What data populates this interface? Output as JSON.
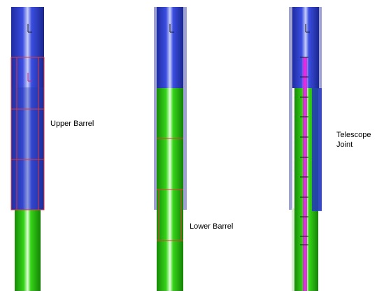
{
  "labels": {
    "upper_barrel": "Upper Barrel",
    "lower_barrel": "Lower Barrel",
    "telescope_joint_line1": "Telescope",
    "telescope_joint_line2": "Joint"
  },
  "colors": {
    "blue": "#2f3fd0",
    "blue_shade": "#1f2ca8",
    "green": "#29c40e",
    "green_shade": "#1c9308",
    "sleeve": "#a9abd6",
    "red_outline": "#e23a3a",
    "magenta": "#e020e0",
    "background": "#ffffff"
  }
}
